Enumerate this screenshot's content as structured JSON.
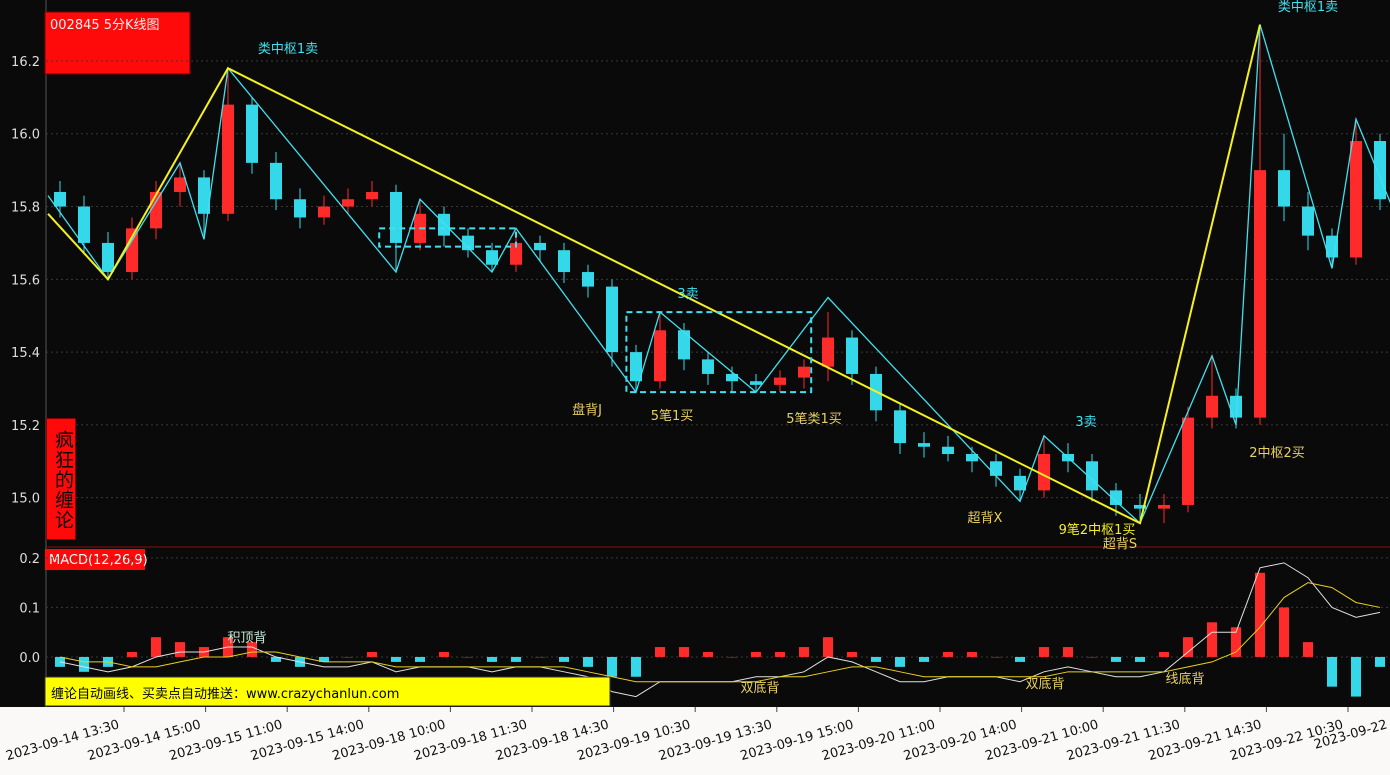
{
  "chart_data": [
    {
      "type": "candlestick",
      "title": "002845 5分K线图",
      "subtitle": "疯狂的缠论",
      "x_labels": [
        "2023-09-14 13:30",
        "2023-09-14 15:00",
        "2023-09-15 11:00",
        "2023-09-15 14:00",
        "2023-09-18 10:00",
        "2023-09-18 11:30",
        "2023-09-18 14:30",
        "2023-09-19 10:30",
        "2023-09-19 13:30",
        "2023-09-19 15:00",
        "2023-09-20 11:00",
        "2023-09-20 14:00",
        "2023-09-21 10:00",
        "2023-09-21 11:30",
        "2023-09-21 14:30",
        "2023-09-22 10:30",
        "2023-09-22"
      ],
      "open": [
        15.84,
        15.8,
        15.7,
        15.62,
        15.74,
        15.84,
        15.88,
        15.78,
        16.08,
        15.92,
        15.82,
        15.77,
        15.8,
        15.82,
        15.84,
        15.7,
        15.78,
        15.72,
        15.68,
        15.64,
        15.7,
        15.68,
        15.62,
        15.58,
        15.4,
        15.32,
        15.46,
        15.38,
        15.34,
        15.32,
        15.31,
        15.33,
        15.36,
        15.44,
        15.34,
        15.24,
        15.15,
        15.14,
        15.12,
        15.1,
        15.06,
        15.02,
        15.12,
        15.1,
        15.02,
        14.98,
        14.97,
        14.98,
        15.22,
        15.28,
        15.22,
        15.9,
        15.8,
        15.72,
        15.66,
        15.98
      ],
      "high": [
        15.87,
        15.83,
        15.73,
        15.77,
        15.87,
        15.92,
        15.9,
        16.18,
        16.1,
        15.95,
        15.85,
        15.83,
        15.85,
        15.87,
        15.86,
        15.82,
        15.8,
        15.74,
        15.7,
        15.72,
        15.72,
        15.7,
        15.64,
        15.6,
        15.42,
        15.51,
        15.48,
        15.4,
        15.36,
        15.34,
        15.35,
        15.38,
        15.51,
        15.46,
        15.36,
        15.26,
        15.18,
        15.17,
        15.14,
        15.12,
        15.08,
        15.17,
        15.15,
        15.12,
        15.04,
        15.01,
        15.01,
        15.25,
        15.39,
        15.3,
        16.3,
        16.0,
        15.84,
        15.74,
        16.04,
        16.0
      ],
      "low": [
        15.77,
        15.67,
        15.6,
        15.6,
        15.71,
        15.8,
        15.72,
        15.76,
        15.89,
        15.79,
        15.74,
        15.75,
        15.78,
        15.8,
        15.62,
        15.68,
        15.69,
        15.66,
        15.62,
        15.62,
        15.65,
        15.59,
        15.55,
        15.36,
        15.29,
        15.3,
        15.35,
        15.31,
        15.29,
        15.29,
        15.29,
        15.3,
        15.32,
        15.31,
        15.21,
        15.12,
        15.11,
        15.1,
        15.07,
        15.03,
        14.99,
        15.0,
        15.07,
        14.99,
        14.95,
        14.94,
        14.93,
        14.96,
        15.19,
        15.19,
        15.2,
        15.76,
        15.68,
        15.63,
        15.64,
        15.79
      ],
      "close": [
        15.8,
        15.7,
        15.62,
        15.74,
        15.84,
        15.88,
        15.78,
        16.08,
        15.92,
        15.82,
        15.77,
        15.8,
        15.82,
        15.84,
        15.7,
        15.78,
        15.72,
        15.68,
        15.64,
        15.7,
        15.68,
        15.62,
        15.58,
        15.4,
        15.32,
        15.46,
        15.38,
        15.34,
        15.32,
        15.31,
        15.33,
        15.36,
        15.44,
        15.34,
        15.24,
        15.15,
        15.14,
        15.12,
        15.1,
        15.06,
        15.02,
        15.12,
        15.1,
        15.02,
        14.98,
        14.97,
        14.98,
        15.22,
        15.28,
        15.22,
        15.9,
        15.8,
        15.72,
        15.66,
        15.98,
        15.82
      ],
      "up_color": "#ff2a2a",
      "down_color": "#35d8e8",
      "ylim": [
        14.87,
        16.34
      ],
      "yticks": [
        {
          "value": 15.0,
          "label": "15.0"
        },
        15.2,
        15.4,
        15.6,
        15.8,
        {
          "value": 16.0,
          "label": "16.0"
        },
        16.2
      ],
      "grid": true,
      "lines": [
        {
          "color": "#40e0f0",
          "x": [
            -0.5,
            2,
            5,
            6,
            7,
            14,
            15,
            18,
            19,
            24,
            25,
            29,
            32,
            40,
            41,
            45,
            48,
            49,
            50,
            53,
            54,
            55.5
          ],
          "y": [
            15.83,
            15.6,
            15.92,
            15.71,
            16.18,
            15.62,
            15.82,
            15.62,
            15.74,
            15.29,
            15.51,
            15.29,
            15.55,
            14.99,
            15.17,
            14.93,
            15.39,
            15.2,
            16.3,
            15.63,
            16.04,
            15.8
          ]
        },
        {
          "color": "#f5f020",
          "x": [
            -0.5,
            2,
            7,
            45,
            50
          ],
          "y": [
            15.78,
            15.6,
            16.18,
            14.93,
            16.3
          ]
        }
      ],
      "boxes": [
        {
          "color": "#40e0f0",
          "x": [
            13.3,
            19.0
          ],
          "y": [
            15.69,
            15.74
          ]
        },
        {
          "color": "#40e0f0",
          "x": [
            23.6,
            31.3
          ],
          "y": [
            15.29,
            15.51
          ]
        }
      ],
      "annotations": [
        {
          "text": "类中枢1卖",
          "color": "#40e0f0"
        },
        {
          "text": "3卖",
          "color": "#40e0f0"
        },
        {
          "text": "盘背J",
          "color": "#e8d060"
        },
        {
          "text": "5笔1买",
          "color": "#e8d060"
        },
        {
          "text": "5笔类1买",
          "color": "#e8d060"
        },
        {
          "text": "3卖",
          "color": "#40e0f0"
        },
        {
          "text": "超背X",
          "color": "#e8d060"
        },
        {
          "text": "9笔2中枢1买",
          "color": "#f5f020"
        },
        {
          "text": "超背S",
          "color": "#e8d060"
        },
        {
          "text": "2中枢2买",
          "color": "#e8d060"
        },
        {
          "text": "类中枢1卖",
          "color": "#40e0f0"
        }
      ]
    },
    {
      "type": "macd",
      "title": "MACD(12,26,9)",
      "histogram": [
        -0.02,
        -0.03,
        -0.02,
        0.01,
        0.04,
        0.03,
        0.02,
        0.04,
        0.03,
        -0.01,
        -0.02,
        -0.01,
        0.0,
        0.01,
        -0.01,
        -0.01,
        0.01,
        0.0,
        -0.01,
        -0.01,
        0.0,
        -0.01,
        -0.02,
        -0.04,
        -0.04,
        0.02,
        0.02,
        0.01,
        0.0,
        0.01,
        0.01,
        0.02,
        0.04,
        0.01,
        -0.01,
        -0.02,
        -0.01,
        0.01,
        0.01,
        0.0,
        -0.01,
        0.02,
        0.02,
        0.0,
        -0.01,
        -0.01,
        0.01,
        0.04,
        0.07,
        0.06,
        0.17,
        0.1,
        0.03,
        -0.06,
        -0.08,
        -0.02
      ],
      "up_color": "#ff2a2a",
      "down_color": "#35d8e8",
      "series": [
        {
          "color": "#e0e0e0",
          "values": [
            -0.01,
            -0.02,
            -0.03,
            -0.02,
            0.0,
            0.01,
            0.01,
            0.02,
            0.02,
            0.0,
            -0.01,
            -0.02,
            -0.02,
            -0.01,
            -0.03,
            -0.02,
            -0.02,
            -0.02,
            -0.03,
            -0.02,
            -0.02,
            -0.03,
            -0.04,
            -0.07,
            -0.08,
            -0.05,
            -0.05,
            -0.05,
            -0.05,
            -0.04,
            -0.04,
            -0.03,
            0.0,
            -0.01,
            -0.03,
            -0.05,
            -0.05,
            -0.04,
            -0.04,
            -0.04,
            -0.05,
            -0.03,
            -0.02,
            -0.03,
            -0.04,
            -0.04,
            -0.03,
            0.01,
            0.05,
            0.05,
            0.18,
            0.19,
            0.16,
            0.1,
            0.08,
            0.09
          ]
        },
        {
          "color": "#e8d020",
          "values": [
            0.0,
            -0.01,
            -0.01,
            -0.02,
            -0.02,
            -0.01,
            0.0,
            0.0,
            0.01,
            0.01,
            0.0,
            -0.01,
            -0.01,
            -0.01,
            -0.02,
            -0.02,
            -0.02,
            -0.02,
            -0.02,
            -0.02,
            -0.02,
            -0.02,
            -0.03,
            -0.04,
            -0.05,
            -0.05,
            -0.05,
            -0.05,
            -0.05,
            -0.05,
            -0.04,
            -0.04,
            -0.03,
            -0.02,
            -0.02,
            -0.03,
            -0.04,
            -0.04,
            -0.04,
            -0.04,
            -0.04,
            -0.04,
            -0.03,
            -0.03,
            -0.03,
            -0.03,
            -0.03,
            -0.02,
            -0.01,
            0.01,
            0.06,
            0.12,
            0.15,
            0.14,
            0.11,
            0.1
          ]
        }
      ],
      "ylim": [
        -0.097,
        0.22
      ],
      "yticks": [
        {
          "value": 0,
          "label": "0.0"
        },
        0.1,
        0.2
      ],
      "annotations": [
        {
          "text": "积顶背",
          "color": "#c8e8d8"
        },
        {
          "text": "双底背",
          "color": "#e8d060"
        },
        {
          "text": "双底背",
          "color": "#e8d060"
        },
        {
          "text": "线底背",
          "color": "#e8d060"
        }
      ],
      "banner": "缠论自动画线、买卖点自动推送：www.crazychanlun.com"
    }
  ]
}
